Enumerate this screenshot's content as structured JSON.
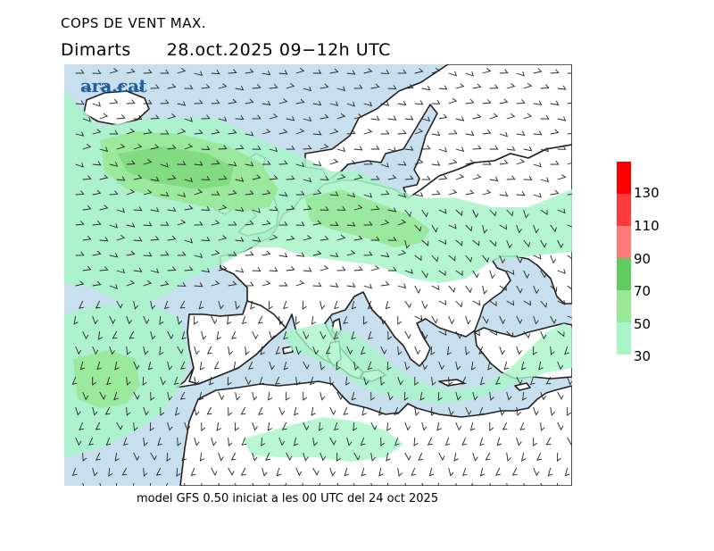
{
  "title": {
    "line1": "COPS DE VENT MAX.",
    "day": "Dimarts",
    "datetime": "28.oct.2025 09−12h UTC"
  },
  "logo": "ara.cat",
  "footer": "model GFS 0.50 iniciat a les 00 UTC del 24 oct 2025",
  "legend": {
    "colors": [
      "#ff0000",
      "#ff3a3a",
      "#ff7a7a",
      "#60cc60",
      "#98e898",
      "#a8f5c8"
    ],
    "labels": [
      "130",
      "110",
      "90",
      "70",
      "50",
      "30"
    ]
  },
  "palette": {
    "sea": "#c8e0ee",
    "land": "#ffffff",
    "gust_30_50": "#a8f5c8",
    "gust_50_70": "#98e898",
    "gust_70_90": "#60cc60",
    "coast": "#222222"
  }
}
